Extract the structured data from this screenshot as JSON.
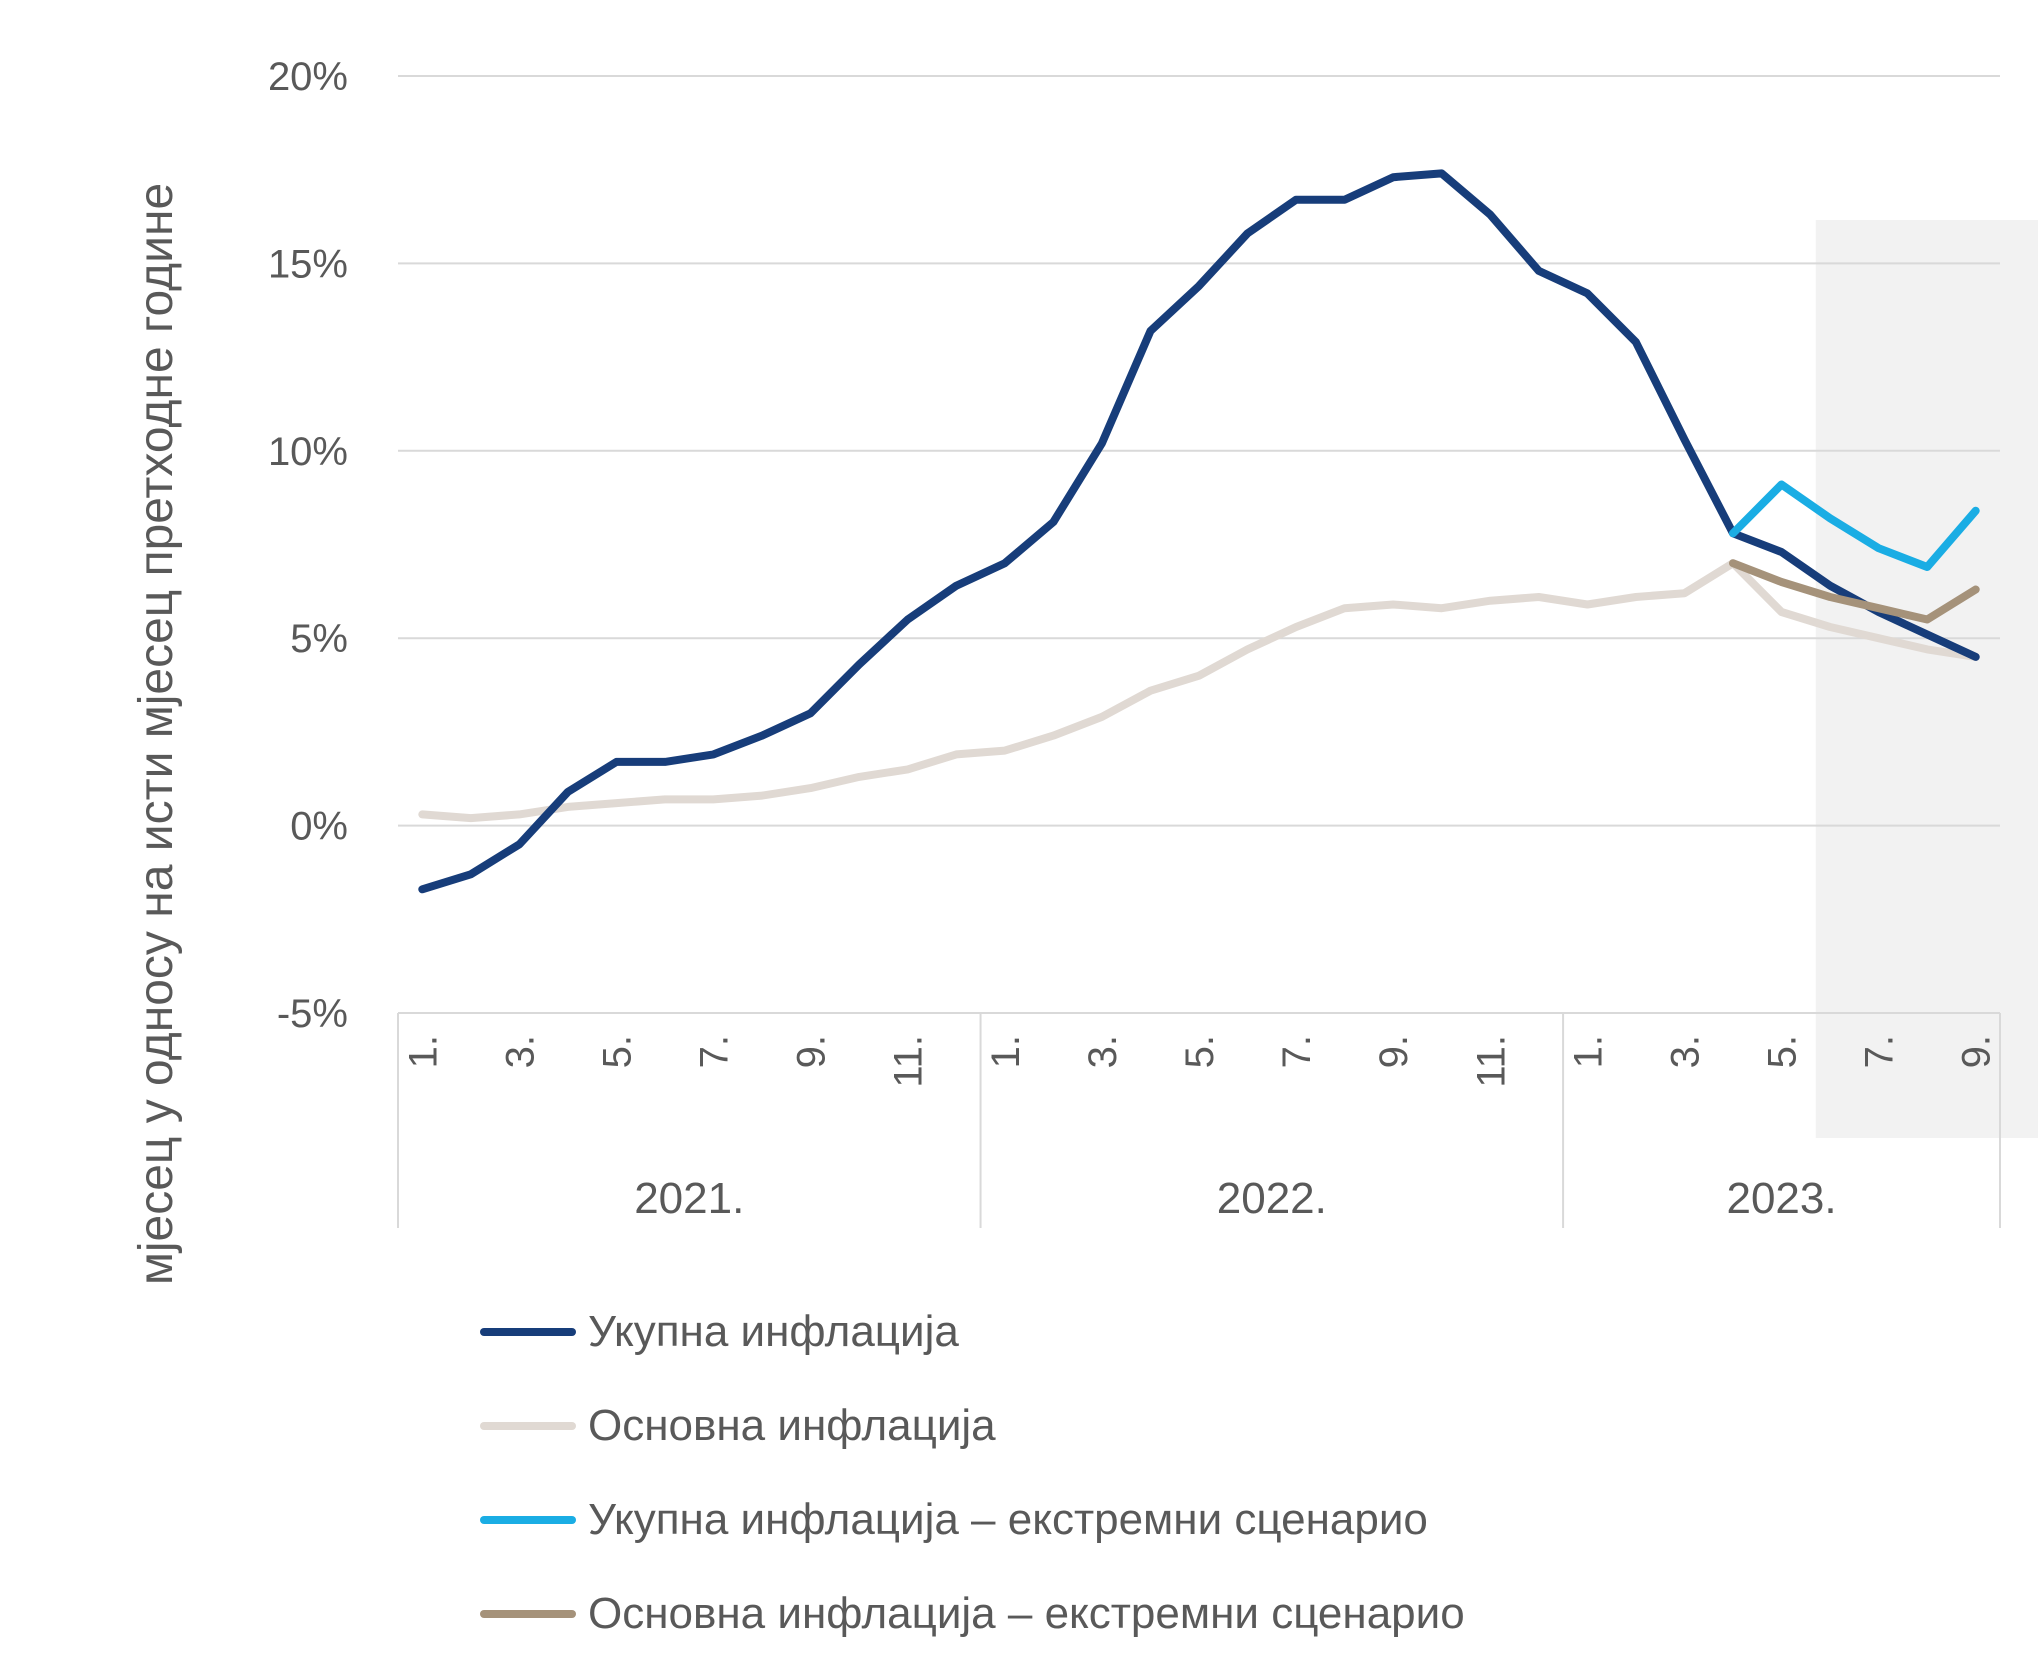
{
  "chart_data": {
    "type": "line",
    "title": "",
    "ylabel": "мјесец у односу на исти мјесец претходне године",
    "xlabel": "",
    "ylim": [
      -5,
      20
    ],
    "yticks": [
      -5,
      0,
      5,
      10,
      15,
      20
    ],
    "ytick_labels": [
      "-5%",
      "0%",
      "5%",
      "10%",
      "15%",
      "20%"
    ],
    "years": [
      {
        "label": "2021.",
        "months": 12
      },
      {
        "label": "2022.",
        "months": 12
      },
      {
        "label": "2023.",
        "months": 9
      }
    ],
    "x_tick_labels": [
      "1.",
      "",
      "3.",
      "",
      "5.",
      "",
      "7.",
      "",
      "9.",
      "",
      "11.",
      "",
      "1.",
      "",
      "3.",
      "",
      "5.",
      "",
      "7.",
      "",
      "9.",
      "",
      "11.",
      "",
      "1.",
      "",
      "3.",
      "",
      "5.",
      "",
      "7.",
      "",
      "9."
    ],
    "shaded_region": {
      "from_index": 29,
      "to_index": 32
    },
    "grid": true,
    "legend_position": "bottom",
    "series": [
      {
        "name": "Укупна инфлација",
        "color": "#173D7A",
        "start_index": 0,
        "values": [
          -1.7,
          -1.3,
          -0.5,
          0.9,
          1.7,
          1.7,
          1.9,
          2.4,
          3.0,
          4.3,
          5.5,
          6.4,
          7.0,
          8.1,
          10.2,
          13.2,
          14.4,
          15.8,
          16.7,
          16.7,
          17.3,
          17.4,
          16.3,
          14.8,
          14.2,
          12.9,
          10.3,
          7.8,
          7.3,
          6.4,
          5.7,
          5.1,
          4.5
        ]
      },
      {
        "name": "Основна инфлација",
        "color": "#E0D9D3",
        "start_index": 0,
        "values": [
          0.3,
          0.2,
          0.3,
          0.5,
          0.6,
          0.7,
          0.7,
          0.8,
          1.0,
          1.3,
          1.5,
          1.9,
          2.0,
          2.4,
          2.9,
          3.6,
          4.0,
          4.7,
          5.3,
          5.8,
          5.9,
          5.8,
          6.0,
          6.1,
          5.9,
          6.1,
          6.2,
          7.0,
          5.7,
          5.3,
          5.0,
          4.7,
          4.5
        ]
      },
      {
        "name": "Укупна инфлација – екстремни сценарио",
        "color": "#1AADE4",
        "start_index": 27,
        "values": [
          7.8,
          9.1,
          8.2,
          7.4,
          6.9,
          8.4
        ]
      },
      {
        "name": "Основна инфлација – екстремни сценарио",
        "color": "#A5927A",
        "start_index": 27,
        "values": [
          7.0,
          6.5,
          6.1,
          5.8,
          5.5,
          6.3
        ]
      }
    ]
  }
}
